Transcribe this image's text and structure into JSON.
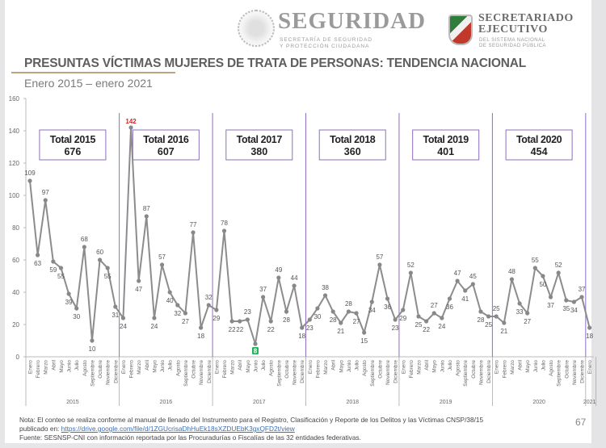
{
  "header": {
    "logo_left_title": "SEGURIDAD",
    "logo_left_sub1": "SECRETARÍA DE SEGURIDAD",
    "logo_left_sub2": "Y PROTECCIÓN CIUDADANA",
    "logo_right_title1": "SECRETARIADO",
    "logo_right_title2": "EJECUTIVO",
    "logo_right_sub1": "DEL SISTEMA NACIONAL",
    "logo_right_sub2": "DE SEGURIDAD PÚBLICA"
  },
  "slide": {
    "title": "PRESUNTAS VÍCTIMAS MUJERES DE TRATA DE PERSONAS: TENDENCIA NACIONAL",
    "subtitle": "Enero 2015 – enero 2021",
    "page_number": "67"
  },
  "footer": {
    "note": "Nota: El conteo se realiza conforme al manual de llenado del Instrumento para el Registro, Clasificación y Reporte de los Delitos y las Víctimas CNSP/38/15",
    "published_prefix": "publicado en: ",
    "link_text": "https://drive.google.com/file/d/1ZGUcrisaDhHuEk18sXZDUEbK3gxQFD2t/view",
    "source": "Fuente: SESNSP-CNI con información reportada por las Procuradurías o Fiscalías de las 32 entidades federativas."
  },
  "colors": {
    "line": "#8c8c8c",
    "divider": "#8e6fbf",
    "max_label": "#e02020",
    "min_label_bg": "#1fb05a",
    "axis_text": "#666666"
  },
  "chart_data": {
    "type": "line",
    "title": "PRESUNTAS VÍCTIMAS MUJERES DE TRATA DE PERSONAS: TENDENCIA NACIONAL",
    "subtitle": "Enero 2015 – enero 2021",
    "xlabel": "",
    "ylabel": "",
    "ylim": [
      0,
      160
    ],
    "yticks": [
      0,
      20,
      40,
      60,
      80,
      100,
      120,
      140,
      160
    ],
    "grid": false,
    "months": [
      "Enero",
      "Febrero",
      "Marzo",
      "Abril",
      "Mayo",
      "Junio",
      "Julio",
      "Agosto",
      "Septiembre",
      "Octubre",
      "Noviembre",
      "Diciembre"
    ],
    "years": [
      "2015",
      "2016",
      "2017",
      "2018",
      "2019",
      "2020",
      "2021"
    ],
    "values": [
      109,
      63,
      97,
      59,
      55,
      39,
      30,
      68,
      10,
      60,
      55,
      31,
      24,
      142,
      47,
      87,
      24,
      57,
      40,
      32,
      27,
      77,
      18,
      32,
      29,
      78,
      22,
      22,
      23,
      8,
      37,
      22,
      49,
      28,
      44,
      18,
      23,
      30,
      38,
      28,
      21,
      28,
      27,
      15,
      34,
      57,
      36,
      23,
      29,
      52,
      25,
      22,
      27,
      24,
      36,
      47,
      41,
      45,
      28,
      25,
      25,
      21,
      48,
      33,
      27,
      55,
      50,
      37,
      52,
      35,
      34,
      37,
      18
    ],
    "max_highlight": {
      "index": 13,
      "value": 142
    },
    "min_highlight": {
      "index": 29,
      "value": 8
    },
    "year_totals": [
      {
        "label": "Total 2015",
        "value": "676"
      },
      {
        "label": "Total 2016",
        "value": "607"
      },
      {
        "label": "Total 2017",
        "value": "380"
      },
      {
        "label": "Total 2018",
        "value": "360"
      },
      {
        "label": "Total 2019",
        "value": "401"
      },
      {
        "label": "Total 2020",
        "value": "454"
      }
    ]
  }
}
